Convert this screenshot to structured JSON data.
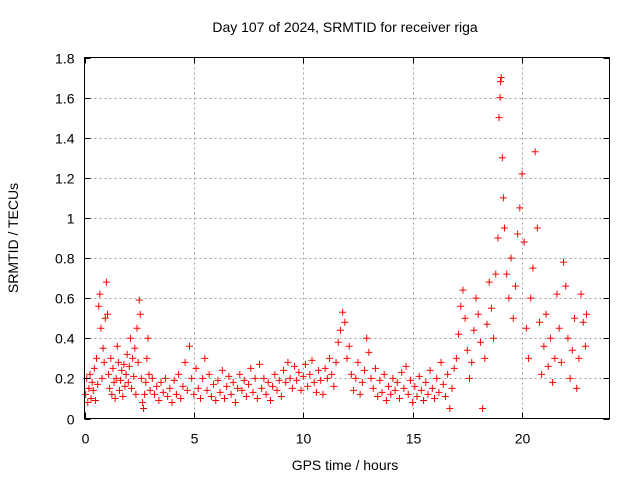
{
  "chart_data": {
    "type": "scatter",
    "title": "Day 107 of 2024, SRMTID for receiver riga",
    "xlabel": "GPS time / hours",
    "ylabel": "SRMTID / TECUs",
    "xlim": [
      0,
      24
    ],
    "ylim": [
      0,
      1.8
    ],
    "xticks": [
      0,
      5,
      10,
      15,
      20
    ],
    "yticks": [
      0,
      0.2,
      0.4,
      0.6,
      0.8,
      1,
      1.2,
      1.4,
      1.6,
      1.8
    ],
    "xtick_labels": [
      "0",
      "5",
      "10",
      "15",
      "20"
    ],
    "ytick_labels": [
      "0",
      "0.2",
      "0.4",
      "0.6",
      "0.8",
      "1",
      "1.2",
      "1.4",
      "1.6",
      "1.8"
    ],
    "grid": true,
    "marker": "plus",
    "color": "#ff0000",
    "series": [
      {
        "name": "SRMTID",
        "points": [
          [
            0.05,
            0.12
          ],
          [
            0.1,
            0.2
          ],
          [
            0.15,
            0.08
          ],
          [
            0.2,
            0.15
          ],
          [
            0.25,
            0.22
          ],
          [
            0.3,
            0.1
          ],
          [
            0.35,
            0.18
          ],
          [
            0.4,
            0.14
          ],
          [
            0.45,
            0.25
          ],
          [
            0.5,
            0.09
          ],
          [
            0.55,
            0.3
          ],
          [
            0.6,
            0.17
          ],
          [
            0.65,
            0.56
          ],
          [
            0.7,
            0.62
          ],
          [
            0.75,
            0.45
          ],
          [
            0.8,
            0.2
          ],
          [
            0.85,
            0.35
          ],
          [
            0.9,
            0.28
          ],
          [
            0.95,
            0.5
          ],
          [
            1.0,
            0.68
          ],
          [
            1.05,
            0.52
          ],
          [
            1.1,
            0.22
          ],
          [
            1.15,
            0.15
          ],
          [
            1.2,
            0.3
          ],
          [
            1.25,
            0.12
          ],
          [
            1.3,
            0.25
          ],
          [
            1.35,
            0.18
          ],
          [
            1.4,
            0.1
          ],
          [
            1.45,
            0.2
          ],
          [
            1.5,
            0.36
          ],
          [
            1.55,
            0.28
          ],
          [
            1.6,
            0.14
          ],
          [
            1.65,
            0.19
          ],
          [
            1.7,
            0.24
          ],
          [
            1.75,
            0.11
          ],
          [
            1.8,
            0.27
          ],
          [
            1.85,
            0.16
          ],
          [
            1.9,
            0.22
          ],
          [
            1.95,
            0.32
          ],
          [
            2.0,
            0.18
          ],
          [
            2.05,
            0.26
          ],
          [
            2.1,
            0.4
          ],
          [
            2.15,
            0.15
          ],
          [
            2.2,
            0.3
          ],
          [
            2.25,
            0.21
          ],
          [
            2.3,
            0.35
          ],
          [
            2.35,
            0.12
          ],
          [
            2.4,
            0.45
          ],
          [
            2.45,
            0.28
          ],
          [
            2.5,
            0.59
          ],
          [
            2.55,
            0.52
          ],
          [
            2.6,
            0.2
          ],
          [
            2.65,
            0.08
          ],
          [
            2.7,
            0.05
          ],
          [
            2.75,
            0.12
          ],
          [
            2.8,
            0.18
          ],
          [
            2.85,
            0.3
          ],
          [
            2.9,
            0.4
          ],
          [
            2.95,
            0.22
          ],
          [
            3.0,
            0.14
          ],
          [
            3.1,
            0.2
          ],
          [
            3.2,
            0.12
          ],
          [
            3.3,
            0.16
          ],
          [
            3.4,
            0.09
          ],
          [
            3.5,
            0.18
          ],
          [
            3.6,
            0.13
          ],
          [
            3.7,
            0.2
          ],
          [
            3.8,
            0.11
          ],
          [
            3.9,
            0.15
          ],
          [
            4.0,
            0.08
          ],
          [
            4.1,
            0.19
          ],
          [
            4.2,
            0.12
          ],
          [
            4.3,
            0.22
          ],
          [
            4.4,
            0.1
          ],
          [
            4.5,
            0.16
          ],
          [
            4.6,
            0.28
          ],
          [
            4.7,
            0.14
          ],
          [
            4.8,
            0.36
          ],
          [
            4.9,
            0.2
          ],
          [
            5.0,
            0.12
          ],
          [
            5.1,
            0.25
          ],
          [
            5.2,
            0.15
          ],
          [
            5.3,
            0.1
          ],
          [
            5.4,
            0.2
          ],
          [
            5.5,
            0.3
          ],
          [
            5.6,
            0.14
          ],
          [
            5.7,
            0.22
          ],
          [
            5.8,
            0.11
          ],
          [
            5.9,
            0.17
          ],
          [
            6.0,
            0.09
          ],
          [
            6.1,
            0.19
          ],
          [
            6.2,
            0.13
          ],
          [
            6.3,
            0.24
          ],
          [
            6.4,
            0.1
          ],
          [
            6.5,
            0.16
          ],
          [
            6.6,
            0.21
          ],
          [
            6.7,
            0.12
          ],
          [
            6.8,
            0.18
          ],
          [
            6.9,
            0.08
          ],
          [
            7.0,
            0.15
          ],
          [
            7.1,
            0.22
          ],
          [
            7.2,
            0.14
          ],
          [
            7.3,
            0.19
          ],
          [
            7.4,
            0.11
          ],
          [
            7.5,
            0.17
          ],
          [
            7.6,
            0.25
          ],
          [
            7.7,
            0.13
          ],
          [
            7.8,
            0.2
          ],
          [
            7.9,
            0.1
          ],
          [
            8.0,
            0.27
          ],
          [
            8.1,
            0.15
          ],
          [
            8.2,
            0.2
          ],
          [
            8.3,
            0.12
          ],
          [
            8.4,
            0.18
          ],
          [
            8.5,
            0.09
          ],
          [
            8.6,
            0.16
          ],
          [
            8.7,
            0.22
          ],
          [
            8.8,
            0.14
          ],
          [
            8.9,
            0.19
          ],
          [
            9.0,
            0.11
          ],
          [
            9.1,
            0.24
          ],
          [
            9.2,
            0.18
          ],
          [
            9.3,
            0.28
          ],
          [
            9.4,
            0.2
          ],
          [
            9.5,
            0.15
          ],
          [
            9.6,
            0.26
          ],
          [
            9.7,
            0.19
          ],
          [
            9.8,
            0.23
          ],
          [
            9.9,
            0.14
          ],
          [
            10.0,
            0.21
          ],
          [
            10.1,
            0.27
          ],
          [
            10.2,
            0.16
          ],
          [
            10.3,
            0.22
          ],
          [
            10.4,
            0.29
          ],
          [
            10.5,
            0.18
          ],
          [
            10.6,
            0.13
          ],
          [
            10.7,
            0.24
          ],
          [
            10.8,
            0.19
          ],
          [
            10.9,
            0.12
          ],
          [
            11.0,
            0.25
          ],
          [
            11.1,
            0.2
          ],
          [
            11.2,
            0.3
          ],
          [
            11.3,
            0.22
          ],
          [
            11.4,
            0.16
          ],
          [
            11.5,
            0.28
          ],
          [
            11.6,
            0.38
          ],
          [
            11.7,
            0.44
          ],
          [
            11.8,
            0.53
          ],
          [
            11.9,
            0.48
          ],
          [
            12.0,
            0.3
          ],
          [
            12.1,
            0.36
          ],
          [
            12.2,
            0.22
          ],
          [
            12.3,
            0.14
          ],
          [
            12.4,
            0.2
          ],
          [
            12.5,
            0.28
          ],
          [
            12.6,
            0.12
          ],
          [
            12.7,
            0.18
          ],
          [
            12.8,
            0.24
          ],
          [
            12.9,
            0.4
          ],
          [
            13.0,
            0.33
          ],
          [
            13.1,
            0.2
          ],
          [
            13.2,
            0.15
          ],
          [
            13.3,
            0.25
          ],
          [
            13.4,
            0.11
          ],
          [
            13.5,
            0.19
          ],
          [
            13.6,
            0.13
          ],
          [
            13.7,
            0.22
          ],
          [
            13.8,
            0.09
          ],
          [
            13.9,
            0.16
          ],
          [
            14.0,
            0.12
          ],
          [
            14.1,
            0.2
          ],
          [
            14.2,
            0.14
          ],
          [
            14.3,
            0.18
          ],
          [
            14.4,
            0.1
          ],
          [
            14.5,
            0.23
          ],
          [
            14.6,
            0.15
          ],
          [
            14.7,
            0.26
          ],
          [
            14.8,
            0.12
          ],
          [
            14.9,
            0.19
          ],
          [
            15.0,
            0.08
          ],
          [
            15.1,
            0.16
          ],
          [
            15.2,
            0.11
          ],
          [
            15.3,
            0.21
          ],
          [
            15.4,
            0.14
          ],
          [
            15.5,
            0.09
          ],
          [
            15.6,
            0.18
          ],
          [
            15.7,
            0.12
          ],
          [
            15.8,
            0.24
          ],
          [
            15.9,
            0.15
          ],
          [
            16.0,
            0.1
          ],
          [
            16.1,
            0.2
          ],
          [
            16.2,
            0.13
          ],
          [
            16.3,
            0.28
          ],
          [
            16.4,
            0.17
          ],
          [
            16.5,
            0.11
          ],
          [
            16.6,
            0.22
          ],
          [
            16.7,
            0.05
          ],
          [
            16.8,
            0.15
          ],
          [
            16.9,
            0.25
          ],
          [
            17.0,
            0.3
          ],
          [
            17.1,
            0.42
          ],
          [
            17.2,
            0.56
          ],
          [
            17.3,
            0.64
          ],
          [
            17.4,
            0.5
          ],
          [
            17.5,
            0.34
          ],
          [
            17.6,
            0.2
          ],
          [
            17.7,
            0.28
          ],
          [
            17.8,
            0.44
          ],
          [
            17.9,
            0.6
          ],
          [
            18.0,
            0.52
          ],
          [
            18.1,
            0.38
          ],
          [
            18.2,
            0.05
          ],
          [
            18.3,
            0.3
          ],
          [
            18.4,
            0.47
          ],
          [
            18.5,
            0.68
          ],
          [
            18.6,
            0.55
          ],
          [
            18.7,
            0.4
          ],
          [
            18.8,
            0.72
          ],
          [
            18.9,
            0.9
          ],
          [
            18.95,
            1.5
          ],
          [
            19.0,
            1.6
          ],
          [
            19.02,
            1.68
          ],
          [
            19.05,
            1.7
          ],
          [
            19.1,
            1.3
          ],
          [
            19.15,
            1.1
          ],
          [
            19.2,
            0.95
          ],
          [
            19.3,
            0.72
          ],
          [
            19.4,
            0.6
          ],
          [
            19.5,
            0.8
          ],
          [
            19.6,
            0.5
          ],
          [
            19.7,
            0.66
          ],
          [
            19.8,
            0.92
          ],
          [
            19.9,
            1.05
          ],
          [
            20.0,
            1.22
          ],
          [
            20.1,
            0.88
          ],
          [
            20.2,
            0.45
          ],
          [
            20.3,
            0.3
          ],
          [
            20.4,
            0.6
          ],
          [
            20.5,
            0.75
          ],
          [
            20.6,
            1.33
          ],
          [
            20.7,
            0.95
          ],
          [
            20.8,
            0.48
          ],
          [
            20.9,
            0.22
          ],
          [
            21.0,
            0.36
          ],
          [
            21.1,
            0.52
          ],
          [
            21.2,
            0.26
          ],
          [
            21.3,
            0.4
          ],
          [
            21.4,
            0.18
          ],
          [
            21.5,
            0.3
          ],
          [
            21.6,
            0.62
          ],
          [
            21.7,
            0.45
          ],
          [
            21.8,
            0.28
          ],
          [
            21.9,
            0.78
          ],
          [
            22.0,
            0.66
          ],
          [
            22.1,
            0.4
          ],
          [
            22.2,
            0.2
          ],
          [
            22.3,
            0.34
          ],
          [
            22.4,
            0.5
          ],
          [
            22.5,
            0.15
          ],
          [
            22.6,
            0.3
          ],
          [
            22.7,
            0.62
          ],
          [
            22.8,
            0.48
          ],
          [
            22.9,
            0.36
          ],
          [
            22.95,
            0.52
          ]
        ]
      }
    ]
  }
}
